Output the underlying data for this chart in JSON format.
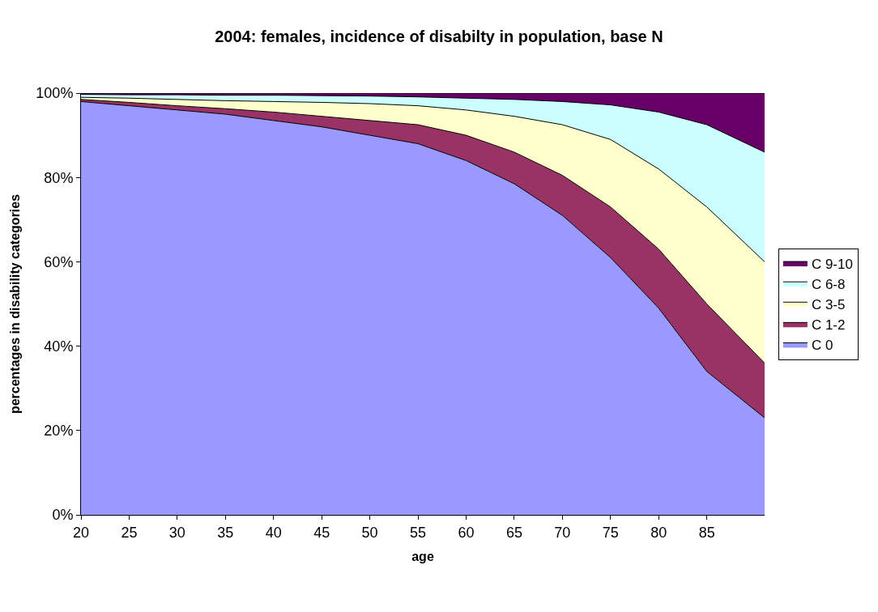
{
  "chart_data": {
    "type": "area",
    "stacked": true,
    "title": "2004: females, incidence of disabilty in population, base N",
    "xlabel": "age",
    "ylabel": "percentages in disability categories",
    "x": [
      20,
      25,
      30,
      35,
      40,
      45,
      50,
      55,
      60,
      65,
      70,
      75,
      80,
      85,
      91
    ],
    "xlim": [
      20,
      91
    ],
    "xticks": [
      20,
      25,
      30,
      35,
      40,
      45,
      50,
      55,
      60,
      65,
      70,
      75,
      80,
      85
    ],
    "ylim": [
      0,
      100
    ],
    "yticks": [
      {
        "value": 0,
        "label": "0%"
      },
      {
        "value": 20,
        "label": "20%"
      },
      {
        "value": 40,
        "label": "40%"
      },
      {
        "value": 60,
        "label": "60%"
      },
      {
        "value": 80,
        "label": "80%"
      },
      {
        "value": 100,
        "label": "100%"
      }
    ],
    "grid": false,
    "legend": "right",
    "series": [
      {
        "name": "C 0",
        "color": "#9999ff",
        "values": [
          98,
          97,
          96,
          95,
          93.5,
          92,
          90,
          88,
          84,
          78.5,
          71,
          61,
          49,
          34,
          23
        ]
      },
      {
        "name": "C 1-2",
        "color": "#993366",
        "values": [
          0.5,
          0.8,
          1,
          1.3,
          2,
          2.5,
          3.5,
          4.5,
          6,
          7.5,
          9.5,
          12,
          14,
          16,
          13
        ]
      },
      {
        "name": "C 3-5",
        "color": "#ffffcc",
        "values": [
          0.5,
          1,
          1.5,
          1.9,
          2.5,
          3.3,
          4,
          4.5,
          6,
          8.5,
          12,
          16,
          19,
          23,
          24
        ]
      },
      {
        "name": "C 6-8",
        "color": "#ccffff",
        "values": [
          0.7,
          0.8,
          1.1,
          1.3,
          1.5,
          1.6,
          1.8,
          2.1,
          2.8,
          4,
          5.5,
          8.2,
          13.5,
          19.5,
          26
        ]
      },
      {
        "name": "C 9-10",
        "color": "#660066",
        "values": [
          0.3,
          0.4,
          0.4,
          0.5,
          0.5,
          0.6,
          0.7,
          0.9,
          1.2,
          1.5,
          2,
          2.8,
          4.5,
          7.5,
          14
        ]
      }
    ]
  }
}
